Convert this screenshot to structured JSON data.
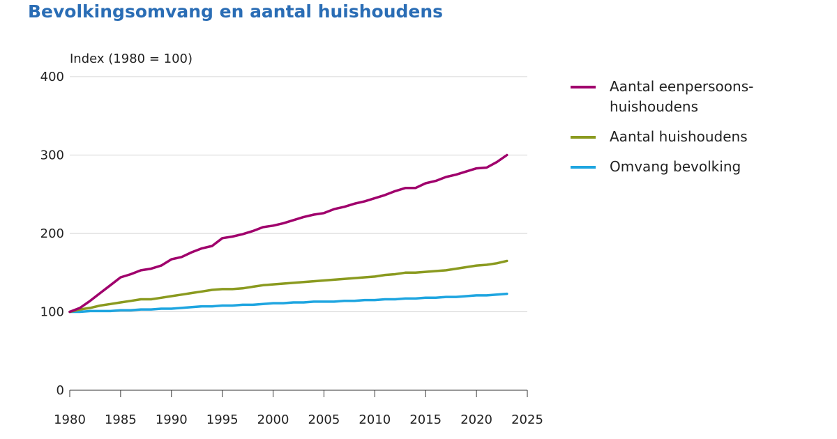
{
  "chart_data": {
    "type": "line",
    "title": "Bevolkingsomvang en aantal huishoudens",
    "ylabel": "Index (1980 = 100)",
    "xlabel": "",
    "xlim": [
      1980,
      2025
    ],
    "ylim": [
      0,
      400
    ],
    "xticks": [
      1980,
      1985,
      1990,
      1995,
      2000,
      2005,
      2010,
      2015,
      2020,
      2025
    ],
    "yticks": [
      0,
      100,
      200,
      300,
      400
    ],
    "grid": "horizontal",
    "legend_position": "right",
    "x": [
      1980,
      1981,
      1982,
      1983,
      1984,
      1985,
      1986,
      1987,
      1988,
      1989,
      1990,
      1991,
      1992,
      1993,
      1994,
      1995,
      1996,
      1997,
      1998,
      1999,
      2000,
      2001,
      2002,
      2003,
      2004,
      2005,
      2006,
      2007,
      2008,
      2009,
      2010,
      2011,
      2012,
      2013,
      2014,
      2015,
      2016,
      2017,
      2018,
      2019,
      2020,
      2021,
      2022,
      2023
    ],
    "series": [
      {
        "name": "Aantal eenpersoons-huishoudens",
        "label_lines": [
          "Aantal eenpersoons-",
          "huishoudens"
        ],
        "color": "#a0006c",
        "values": [
          100,
          105,
          114,
          124,
          134,
          144,
          148,
          153,
          155,
          159,
          167,
          170,
          176,
          181,
          184,
          194,
          196,
          199,
          203,
          208,
          210,
          213,
          217,
          221,
          224,
          226,
          231,
          234,
          238,
          241,
          245,
          249,
          254,
          258,
          258,
          264,
          267,
          272,
          275,
          279,
          283,
          284,
          291,
          300
        ]
      },
      {
        "name": "Aantal huishoudens",
        "label_lines": [
          "Aantal huishoudens"
        ],
        "color": "#8a9a1f",
        "values": [
          100,
          103,
          105,
          108,
          110,
          112,
          114,
          116,
          116,
          118,
          120,
          122,
          124,
          126,
          128,
          129,
          129,
          130,
          132,
          134,
          135,
          136,
          137,
          138,
          139,
          140,
          141,
          142,
          143,
          144,
          145,
          147,
          148,
          150,
          150,
          151,
          152,
          153,
          155,
          157,
          159,
          160,
          162,
          165
        ]
      },
      {
        "name": "Omvang bevolking",
        "label_lines": [
          "Omvang bevolking"
        ],
        "color": "#1ea5e0",
        "values": [
          100,
          100,
          101,
          101,
          101,
          102,
          102,
          103,
          103,
          104,
          104,
          105,
          106,
          107,
          107,
          108,
          108,
          109,
          109,
          110,
          111,
          111,
          112,
          112,
          113,
          113,
          113,
          114,
          114,
          115,
          115,
          116,
          116,
          117,
          117,
          118,
          118,
          119,
          119,
          120,
          121,
          121,
          122,
          123
        ]
      }
    ]
  }
}
